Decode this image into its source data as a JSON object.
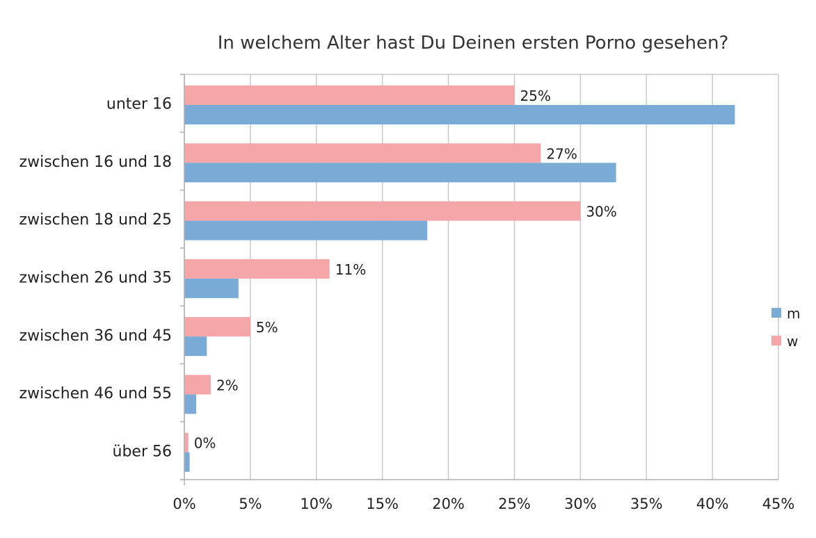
{
  "chart_data": {
    "type": "bar",
    "orientation": "horizontal",
    "title": "In welchem Alter hast Du Deinen ersten Porno gesehen?",
    "categories": [
      "unter 16",
      "zwischen 16 und 18",
      "zwischen 18 und 25",
      "zwischen 26 und 35",
      "zwischen 36 und 45",
      "zwischen 46 und 55",
      "über 56"
    ],
    "series": [
      {
        "name": "w",
        "color": "#f4a6a8",
        "values": [
          25,
          27,
          30,
          11,
          5,
          2,
          0.3
        ],
        "data_labels": [
          "25%",
          "27%",
          "30%",
          "11%",
          "5%",
          "2%",
          "0%"
        ]
      },
      {
        "name": "m",
        "color": "#7aaad6",
        "values": [
          41.7,
          32.7,
          18.4,
          4.1,
          1.7,
          0.9,
          0.4
        ],
        "data_labels": []
      }
    ],
    "x_ticks": [
      "0%",
      "5%",
      "10%",
      "15%",
      "20%",
      "25%",
      "30%",
      "35%",
      "40%",
      "45%"
    ],
    "xlim": [
      0,
      45
    ],
    "grid": true,
    "legend": {
      "position": "right",
      "entries": [
        "m",
        "w"
      ]
    }
  },
  "colors": {
    "m": "#7aaad6",
    "w": "#f4a6a8",
    "grid": "#c8c8c8",
    "axis": "#b0b0b0"
  }
}
